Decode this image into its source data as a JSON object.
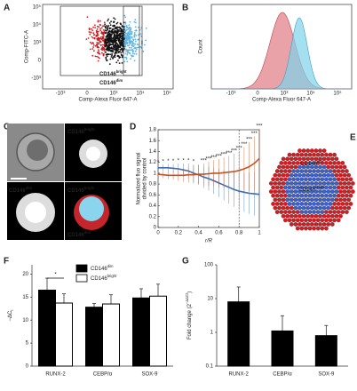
{
  "chart_data": [
    {
      "type": "scatter",
      "panel": "A",
      "x_label": "Comp-Alexa Fluor 647-A",
      "y_label": "Comp-FITC-A",
      "xtick_labels": [
        "-10³",
        "0",
        "10³",
        "10⁴",
        "10⁵"
      ],
      "ytick_labels": [
        "-10³",
        "0",
        "10³",
        "10⁴",
        "10⁵"
      ],
      "series": [
        {
          "name": "CD146",
          "sup": "bright",
          "color": "#5ab4e6"
        },
        {
          "name": "CD146",
          "sup": "dim",
          "color": "#d7191c"
        }
      ]
    },
    {
      "type": "histogram",
      "panel": "B",
      "x_label": "Comp-Alexa Fluor 647-A",
      "y_label": "Count",
      "xtick_labels": [
        "-10³",
        "0",
        "10³",
        "10⁴",
        "10⁵"
      ],
      "series": [
        {
          "color": "#e07a82"
        },
        {
          "color": "#7fd3ea"
        }
      ]
    },
    {
      "type": "line",
      "panel": "D",
      "x_label": "r/R",
      "y_label": [
        "Normalized fluo signal",
        "divided by control"
      ],
      "x": [
        0,
        0.05,
        0.1,
        0.15,
        0.2,
        0.25,
        0.3,
        0.35,
        0.4,
        0.45,
        0.5,
        0.55,
        0.6,
        0.65,
        0.7,
        0.75,
        0.8,
        0.85,
        0.9,
        0.95,
        1
      ],
      "xlim": [
        0,
        1
      ],
      "ylim": [
        0,
        1.8
      ],
      "xticks": [
        0,
        0.2,
        0.4,
        0.6,
        0.8,
        1
      ],
      "yticks": [
        0,
        0.2,
        0.4,
        0.6,
        0.8,
        1,
        1.2,
        1.4,
        1.6,
        1.8
      ],
      "reference_x": 0.8,
      "series": [
        {
          "color": "#3a6db5",
          "values": [
            1.1,
            1.1,
            1.1,
            1.09,
            1.08,
            1.06,
            1.04,
            1.0,
            0.97,
            0.93,
            0.9,
            0.86,
            0.82,
            0.78,
            0.74,
            0.7,
            0.67,
            0.65,
            0.63,
            0.62,
            0.61
          ],
          "errors": [
            0.05,
            0.06,
            0.07,
            0.08,
            0.1,
            0.12,
            0.14,
            0.16,
            0.18,
            0.2,
            0.22,
            0.24,
            0.26,
            0.28,
            0.3,
            0.32,
            0.34,
            0.36,
            0.38,
            0.4,
            0.4
          ],
          "significance": [
            "*",
            "*",
            "*",
            "*",
            "*",
            "*",
            "*",
            "*",
            null,
            null,
            null,
            null,
            null,
            null,
            null,
            null,
            null,
            null,
            null,
            null,
            null
          ]
        },
        {
          "color": "#c8511f",
          "values": [
            0.98,
            0.97,
            0.96,
            0.96,
            0.96,
            0.96,
            0.97,
            0.97,
            0.98,
            0.98,
            0.99,
            1.0,
            1.0,
            1.01,
            1.02,
            1.03,
            1.05,
            1.08,
            1.12,
            1.18,
            1.27
          ],
          "errors": [
            0.05,
            0.06,
            0.07,
            0.08,
            0.1,
            0.12,
            0.14,
            0.16,
            0.18,
            0.2,
            0.22,
            0.24,
            0.26,
            0.28,
            0.3,
            0.33,
            0.36,
            0.4,
            0.45,
            0.5,
            0.55
          ],
          "significance": [
            null,
            null,
            null,
            null,
            null,
            null,
            null,
            null,
            null,
            "***",
            "***",
            "***",
            "***",
            "***",
            "***",
            "***",
            "***",
            "***",
            "***",
            "***",
            "***"
          ]
        }
      ]
    },
    {
      "type": "bar",
      "panel": "F",
      "y_label": "−ΔC",
      "y_label_sub": "t",
      "categories": [
        "RUNX-2",
        "CEBP/α",
        "SOX-9"
      ],
      "ylim": [
        0,
        22
      ],
      "yticks": [
        0,
        5,
        10,
        15,
        20
      ],
      "annotation": "*",
      "series": [
        {
          "name": "CD146",
          "sup": "dim",
          "color": "#000000",
          "values": [
            16.5,
            12.8,
            14.8
          ],
          "errors": [
            2.6,
            0.8,
            2.0
          ]
        },
        {
          "name": "CD146",
          "sup": "bright",
          "color": "#ffffff",
          "values": [
            13.7,
            13.5,
            15.2
          ],
          "errors": [
            2.0,
            2.0,
            2.6
          ]
        }
      ]
    },
    {
      "type": "bar",
      "panel": "G",
      "y_label": "Fold change (2",
      "y_label_sup": "−ΔΔCt",
      "y_label_end": ")",
      "log": true,
      "categories": [
        "RUNX-2",
        "CEBP/α",
        "SOX-9"
      ],
      "ylim": [
        0.1,
        100
      ],
      "yticks": [
        0.1,
        1,
        10,
        100
      ],
      "series": [
        {
          "color": "#000000",
          "values": [
            8,
            1.1,
            0.8
          ],
          "errors": [
            14,
            2,
            0.8
          ]
        }
      ]
    }
  ],
  "figure": {
    "C": {
      "panel": "C",
      "labels": [
        {
          "name": "CD146",
          "sup": "bright"
        },
        {
          "name": "CD146",
          "sup": "dim"
        },
        {
          "name": "CD146",
          "sup": "bright"
        },
        {
          "name": "CD146",
          "sup": "dim"
        }
      ]
    },
    "E": {
      "panel": "E",
      "outer": {
        "name": "CD146",
        "sup": "dim"
      },
      "inner": {
        "name": "CD146",
        "sup": "bright"
      }
    }
  }
}
